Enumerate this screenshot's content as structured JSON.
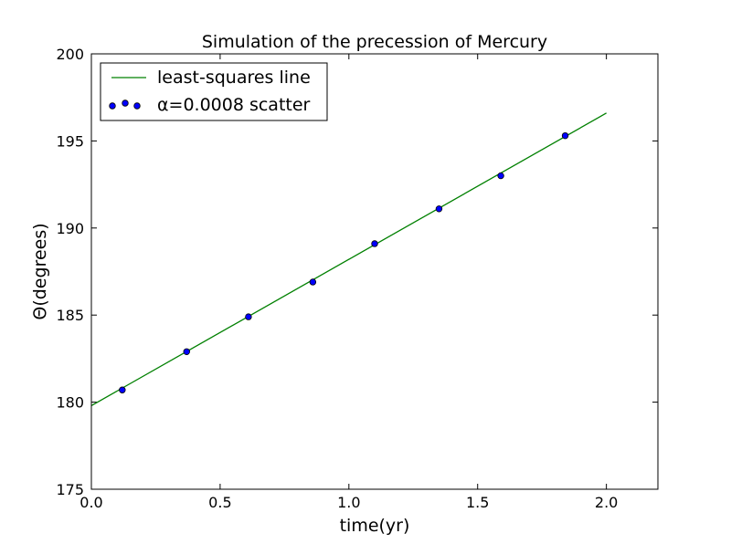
{
  "chart_data": {
    "type": "scatter",
    "title": "Simulation of the precession of Mercury",
    "xlabel": "time(yr)",
    "ylabel": "Θ(degrees)",
    "xlim": [
      0.0,
      2.2
    ],
    "ylim": [
      175,
      200
    ],
    "xticks": [
      {
        "value": 0.0,
        "label": "0.0"
      },
      {
        "value": 0.5,
        "label": "0.5"
      },
      {
        "value": 1.0,
        "label": "1.0"
      },
      {
        "value": 1.5,
        "label": "1.5"
      },
      {
        "value": 2.0,
        "label": "2.0"
      }
    ],
    "yticks": [
      {
        "value": 175,
        "label": "175"
      },
      {
        "value": 180,
        "label": "180"
      },
      {
        "value": 185,
        "label": "185"
      },
      {
        "value": 190,
        "label": "190"
      },
      {
        "value": 195,
        "label": "195"
      },
      {
        "value": 200,
        "label": "200"
      }
    ],
    "grid": false,
    "legend_position": "top-left",
    "series": [
      {
        "name": "least-squares line",
        "kind": "line",
        "color": "#008000",
        "x": [
          0.0,
          2.0
        ],
        "y": [
          179.8,
          196.6
        ]
      },
      {
        "name": "α=0.0008  scatter",
        "kind": "scatter",
        "color": "#0000ff",
        "x": [
          0.12,
          0.37,
          0.61,
          0.86,
          1.1,
          1.35,
          1.59,
          1.84
        ],
        "y": [
          180.7,
          182.9,
          184.9,
          186.9,
          189.1,
          191.1,
          193.0,
          195.3
        ]
      }
    ]
  }
}
